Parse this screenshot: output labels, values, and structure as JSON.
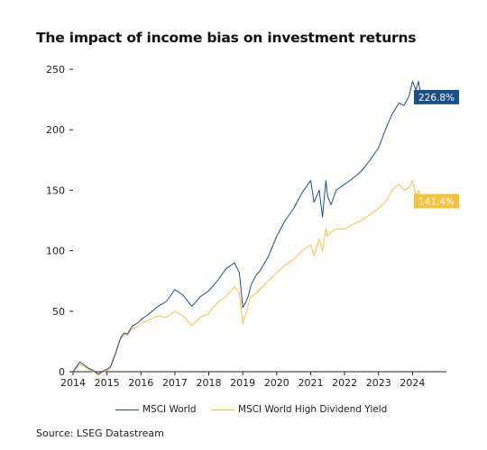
{
  "title": "The impact of income bias on investment returns",
  "source": "Source: LSEG Datastream",
  "colors": {
    "msci_world": "#1b4f8c",
    "msci_high_dividend": "#f5c33b",
    "axis": "#222222"
  },
  "chart_data": {
    "type": "line",
    "title": "The impact of income bias on investment returns",
    "xlabel": "",
    "ylabel": "",
    "xlim": [
      2014,
      2025
    ],
    "ylim": [
      0,
      250
    ],
    "yticks": [
      0,
      50,
      100,
      150,
      200,
      250
    ],
    "xticks": [
      2014,
      2015,
      2016,
      2017,
      2018,
      2019,
      2020,
      2021,
      2022,
      2023,
      2024
    ],
    "grid": false,
    "legend": "bottom",
    "series": [
      {
        "name": "MSCI World",
        "color": "#1b4f8c",
        "end_label": "226.8%",
        "x": [
          2014.0,
          2014.1,
          2014.2,
          2014.3,
          2014.45,
          2014.6,
          2014.75,
          2014.85,
          2015.0,
          2015.1,
          2015.25,
          2015.4,
          2015.5,
          2015.6,
          2015.75,
          2015.9,
          2016.0,
          2016.1,
          2016.25,
          2016.5,
          2016.75,
          2017.0,
          2017.25,
          2017.5,
          2017.75,
          2018.0,
          2018.1,
          2018.3,
          2018.5,
          2018.75,
          2018.9,
          2019.0,
          2019.1,
          2019.17,
          2019.2,
          2019.25,
          2019.3,
          2019.4,
          2019.5,
          2019.75,
          2020.0,
          2020.25,
          2020.5,
          2020.75,
          2021.0,
          2021.1,
          2021.25,
          2021.35,
          2021.45,
          2021.5,
          2021.6,
          2021.75,
          2022.0,
          2022.25,
          2022.5,
          2022.75,
          2023.0,
          2023.2,
          2023.4,
          2023.6,
          2023.75,
          2023.9,
          2024.0,
          2024.1,
          2024.18,
          2024.25
        ],
        "y": [
          0,
          4,
          8,
          6,
          3,
          1,
          -2,
          0,
          2,
          4,
          15,
          28,
          32,
          31,
          38,
          40,
          43,
          45,
          48,
          54,
          58,
          68,
          63,
          54,
          62,
          67,
          70,
          77,
          85,
          90,
          82,
          53,
          58,
          63,
          67,
          72,
          75,
          80,
          83,
          95,
          112,
          125,
          135,
          148,
          158,
          140,
          150,
          128,
          158,
          145,
          138,
          150,
          155,
          160,
          166,
          175,
          185,
          200,
          213,
          222,
          220,
          228,
          240,
          233,
          240,
          227
        ]
      },
      {
        "name": "MSCI World High Dividend Yield",
        "color": "#f5c33b",
        "end_label": "141.4%",
        "x": [
          2014.0,
          2014.1,
          2014.2,
          2014.3,
          2014.45,
          2014.6,
          2014.75,
          2014.85,
          2015.0,
          2015.1,
          2015.25,
          2015.4,
          2015.5,
          2015.6,
          2015.75,
          2015.9,
          2016.0,
          2016.1,
          2016.25,
          2016.5,
          2016.75,
          2017.0,
          2017.25,
          2017.5,
          2017.75,
          2018.0,
          2018.1,
          2018.3,
          2018.5,
          2018.75,
          2018.9,
          2019.0,
          2019.1,
          2019.17,
          2019.2,
          2019.25,
          2019.3,
          2019.4,
          2019.5,
          2019.75,
          2020.0,
          2020.25,
          2020.5,
          2020.75,
          2021.0,
          2021.1,
          2021.25,
          2021.35,
          2021.45,
          2021.5,
          2021.6,
          2021.75,
          2022.0,
          2022.25,
          2022.5,
          2022.75,
          2023.0,
          2023.2,
          2023.4,
          2023.6,
          2023.75,
          2023.9,
          2024.0,
          2024.1,
          2024.18,
          2024.25
        ],
        "y": [
          0,
          3,
          6,
          5,
          2,
          0,
          -3,
          -1,
          1,
          3,
          14,
          27,
          31,
          30,
          36,
          37,
          40,
          41,
          43,
          46,
          45,
          50,
          46,
          38,
          45,
          48,
          52,
          58,
          62,
          70,
          65,
          40,
          48,
          56,
          60,
          62,
          63,
          65,
          68,
          75,
          82,
          88,
          93,
          100,
          105,
          96,
          110,
          100,
          118,
          112,
          115,
          118,
          118,
          122,
          125,
          130,
          135,
          140,
          150,
          155,
          150,
          152,
          158,
          146,
          150,
          141
        ]
      }
    ]
  }
}
